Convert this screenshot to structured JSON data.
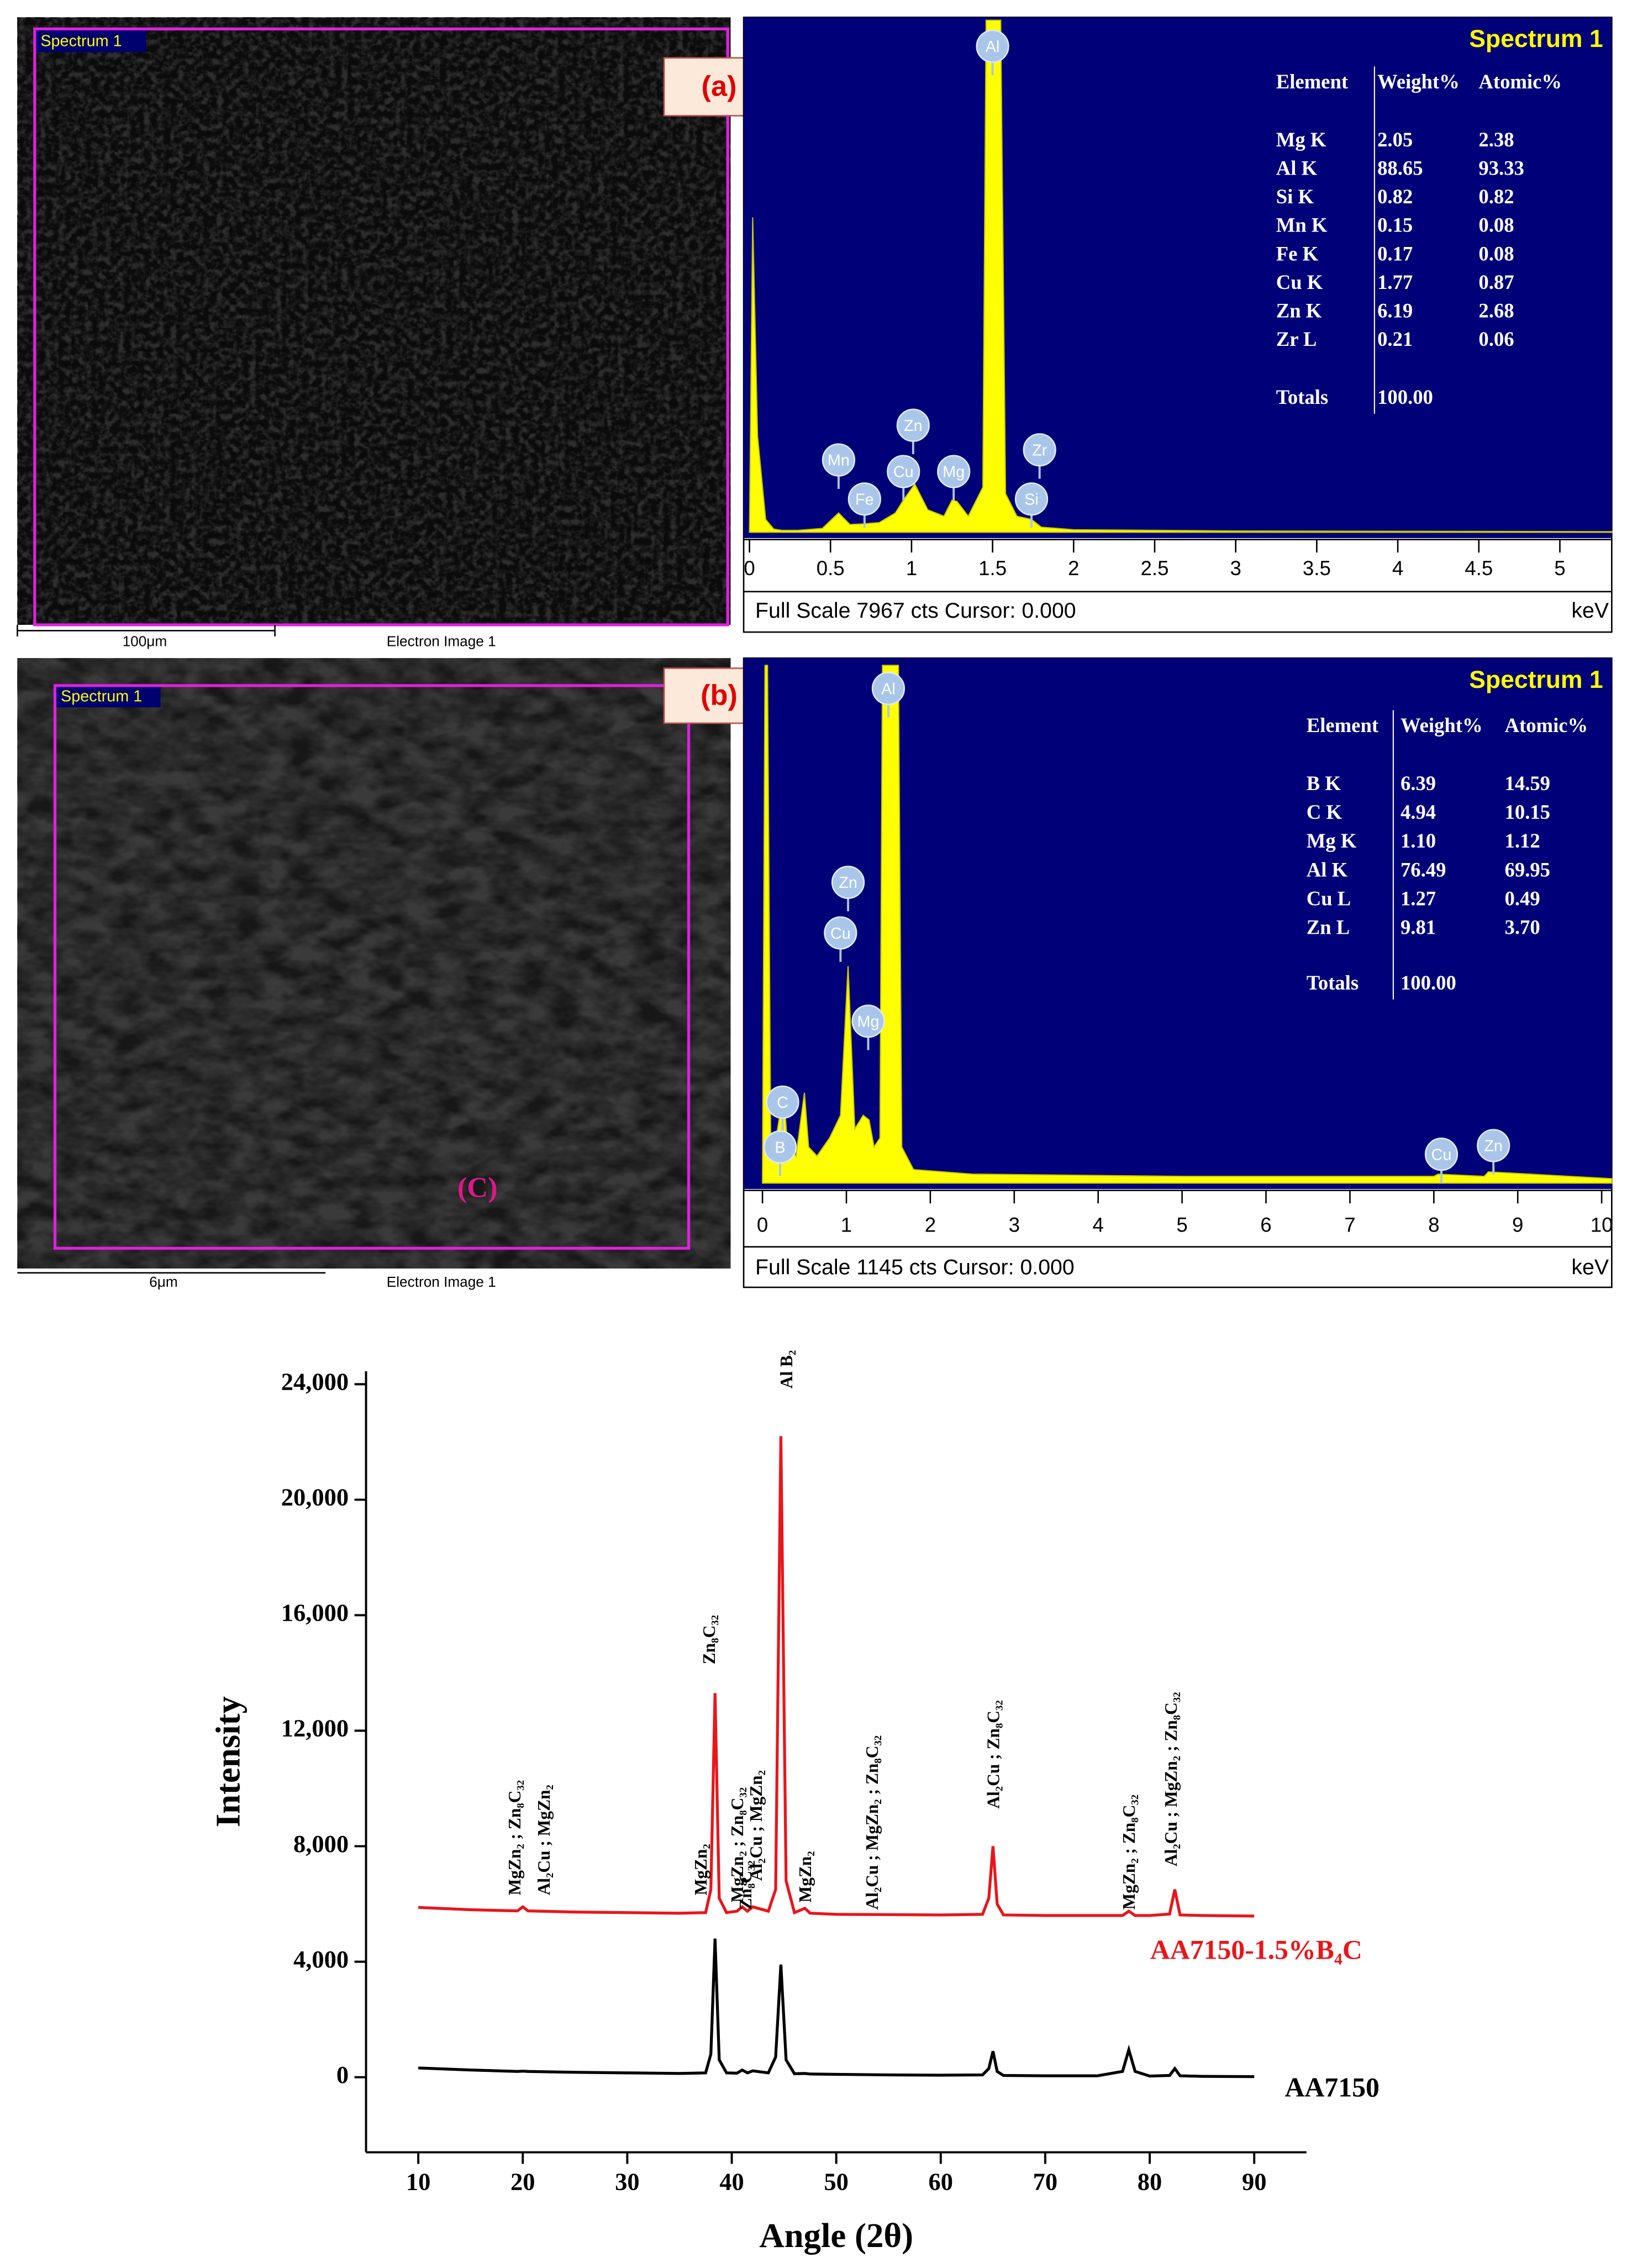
{
  "images": [
    {
      "panel": "(a)",
      "region_label": "Spectrum 1",
      "scale_bar": "100μm",
      "caption": "Electron Image 1"
    },
    {
      "panel": "(b)",
      "region_label": "Spectrum 1",
      "scale_bar": "6μm",
      "caption": "Electron Image 1"
    }
  ],
  "chart_data": [
    {
      "type": "area",
      "title": "Spectrum 1",
      "footer": "Full Scale 7967 cts Cursor: 0.000",
      "x_label": "keV",
      "color": "#ffff00",
      "background": "#000078",
      "xlim": [
        0,
        5.32
      ],
      "xticks": [
        0,
        0.5,
        1,
        1.5,
        2,
        2.5,
        3,
        3.5,
        4,
        4.5,
        5
      ],
      "ylim": [
        0,
        7967
      ],
      "x": [
        0,
        0.02,
        0.05,
        0.1,
        0.15,
        0.2,
        0.3,
        0.45,
        0.55,
        0.62,
        0.7,
        0.8,
        0.9,
        0.95,
        1.02,
        1.1,
        1.2,
        1.25,
        1.28,
        1.35,
        1.44,
        1.46,
        1.55,
        1.58,
        1.65,
        1.74,
        1.8,
        2.0,
        3.0,
        5.32
      ],
      "values": [
        0,
        4900,
        1500,
        200,
        50,
        30,
        30,
        60,
        300,
        120,
        130,
        150,
        300,
        500,
        750,
        350,
        250,
        500,
        480,
        250,
        700,
        7967,
        7967,
        600,
        250,
        200,
        80,
        40,
        20,
        10
      ],
      "peak_labels": [
        {
          "text": "Al",
          "x": 1.5
        },
        {
          "text": "Mn",
          "x": 0.55
        },
        {
          "text": "Fe",
          "x": 0.71
        },
        {
          "text": "Cu",
          "x": 0.95
        },
        {
          "text": "Zn",
          "x": 1.01
        },
        {
          "text": "Mg",
          "x": 1.26
        },
        {
          "text": "Zr",
          "x": 1.79
        },
        {
          "text": "Si",
          "x": 1.74
        }
      ],
      "table": {
        "columns": [
          "Element",
          "Weight%",
          "Atomic%"
        ],
        "rows": [
          [
            "Mg K",
            "2.05",
            "2.38"
          ],
          [
            "Al K",
            "88.65",
            "93.33"
          ],
          [
            "Si K",
            "0.82",
            "0.82"
          ],
          [
            "Mn K",
            "0.15",
            "0.08"
          ],
          [
            "Fe K",
            "0.17",
            "0.08"
          ],
          [
            "Cu K",
            "1.77",
            "0.87"
          ],
          [
            "Zn K",
            "6.19",
            "2.68"
          ],
          [
            "Zr L",
            "0.21",
            "0.06"
          ]
        ],
        "totals": [
          "Totals",
          "100.00"
        ]
      }
    },
    {
      "type": "area",
      "title": "Spectrum 1",
      "footer": "Full Scale 1145 cts Cursor: 0.000",
      "x_label": "keV",
      "color": "#ffff00",
      "background": "#000078",
      "xlim": [
        0,
        10.12
      ],
      "xticks": [
        0,
        1,
        2,
        3,
        4,
        5,
        6,
        7,
        8,
        9,
        10
      ],
      "ylim": [
        0,
        1145
      ],
      "x": [
        0,
        0.03,
        0.06,
        0.1,
        0.18,
        0.25,
        0.3,
        0.4,
        0.5,
        0.55,
        0.65,
        0.8,
        0.93,
        1.02,
        1.1,
        1.2,
        1.27,
        1.33,
        1.4,
        1.43,
        1.62,
        1.66,
        1.8,
        2.5,
        5,
        8.0,
        8.05,
        8.6,
        8.65,
        10.12
      ],
      "values": [
        0,
        1145,
        1145,
        50,
        120,
        200,
        80,
        60,
        200,
        80,
        60,
        100,
        150,
        480,
        120,
        150,
        140,
        80,
        100,
        1145,
        1145,
        80,
        30,
        20,
        15,
        15,
        20,
        15,
        25,
        10
      ],
      "peak_labels": [
        {
          "text": "Al",
          "x": 1.5
        },
        {
          "text": "Zn",
          "x": 1.02
        },
        {
          "text": "Cu",
          "x": 0.93
        },
        {
          "text": "Mg",
          "x": 1.26
        },
        {
          "text": "C",
          "x": 0.24
        },
        {
          "text": "B",
          "x": 0.21
        },
        {
          "text": "Cu",
          "x": 8.09
        },
        {
          "text": "Zn",
          "x": 8.71
        }
      ],
      "table": {
        "columns": [
          "Element",
          "Weight%",
          "Atomic%"
        ],
        "rows": [
          [
            "B K",
            "6.39",
            "14.59"
          ],
          [
            "C K",
            "4.94",
            "10.15"
          ],
          [
            "Mg K",
            "1.10",
            "1.12"
          ],
          [
            "Al K",
            "76.49",
            "69.95"
          ],
          [
            "Cu L",
            "1.27",
            "0.49"
          ],
          [
            "Zn L",
            "9.81",
            "3.70"
          ]
        ],
        "totals": [
          "Totals",
          "100.00"
        ]
      }
    },
    {
      "type": "line",
      "panel": "(C)",
      "x_label": "Angle (2θ)",
      "y_label": "Intensity",
      "xlim": [
        5,
        95
      ],
      "xticks": [
        10,
        20,
        30,
        40,
        50,
        60,
        70,
        80,
        90
      ],
      "ylim": [
        -2600,
        24450
      ],
      "yticks": [
        0,
        {
          "value": 4000,
          "label": "4,000"
        },
        {
          "value": 8000,
          "label": "8,000"
        },
        {
          "value": 12000,
          "label": "12,000"
        },
        {
          "value": 16000,
          "label": "16,000"
        },
        {
          "value": 20000,
          "label": "20,000"
        },
        {
          "value": 24000,
          "label": "24,000"
        }
      ],
      "x": [
        10,
        15,
        19.5,
        20,
        20.5,
        25,
        30,
        35,
        37.5,
        38,
        38.4,
        38.8,
        39.5,
        40.5,
        41,
        41.5,
        42,
        43.5,
        44.2,
        44.7,
        45.2,
        46,
        47,
        47.5,
        50,
        55,
        60,
        64,
        64.6,
        65,
        65.4,
        66,
        70,
        75,
        77.4,
        78,
        78.6,
        80,
        81.9,
        82.4,
        82.9,
        85,
        90
      ],
      "series": [
        {
          "name": "AA7150-1.5%B₄C",
          "color": "#e8161b",
          "values": [
            5880,
            5800,
            5760,
            5900,
            5760,
            5720,
            5700,
            5680,
            5700,
            6500,
            13300,
            6200,
            5700,
            5750,
            5900,
            5750,
            5900,
            5750,
            6500,
            22200,
            6800,
            5700,
            5850,
            5680,
            5640,
            5630,
            5620,
            5640,
            6200,
            8000,
            6000,
            5620,
            5600,
            5600,
            5600,
            5750,
            5600,
            5600,
            5650,
            6500,
            5620,
            5600,
            5580
          ]
        },
        {
          "name": "AA7150",
          "color": "#000000",
          "values": [
            320,
            250,
            200,
            210,
            200,
            170,
            150,
            130,
            150,
            800,
            4800,
            600,
            150,
            140,
            250,
            150,
            220,
            150,
            700,
            3900,
            600,
            120,
            130,
            110,
            100,
            80,
            70,
            80,
            300,
            900,
            200,
            60,
            50,
            50,
            200,
            950,
            200,
            40,
            60,
            300,
            50,
            30,
            20
          ]
        }
      ],
      "annotations": [
        {
          "text": "MgZn₂ ; Zn₈C₃₂",
          "x": 19.4,
          "y": 6300
        },
        {
          "text": "Al₂Cu ; MgZn₂",
          "x": 22.2,
          "y": 6300
        },
        {
          "text": "MgZn₂",
          "x": 37.2,
          "y": 6300
        },
        {
          "text": "Zn₈C₃₂",
          "x": 38.0,
          "y": 14300
        },
        {
          "text": "MgZn₂ ; Zn₈C₃₂",
          "x": 40.7,
          "y": 6050
        },
        {
          "text": "Zn₈C₃₂",
          "x": 41.5,
          "y": 5800
        },
        {
          "text": "Al₂Cu ; MgZn₂",
          "x": 42.5,
          "y": 6800
        },
        {
          "text": "Al B₂",
          "x": 45.4,
          "y": 23850
        },
        {
          "text": "MgZn₂",
          "x": 47.2,
          "y": 6050
        },
        {
          "text": "Al₂Cu ;  MgZn₂ ; Zn₈C₃₂",
          "x": 53.6,
          "y": 5800
        },
        {
          "text": "Al₂Cu ;  Zn₈C₃₂",
          "x": 65.2,
          "y": 9300
        },
        {
          "text": "MgZn₂ ; Zn₈C₃₂",
          "x": 78.2,
          "y": 5800
        },
        {
          "text": "Al₂Cu ;  MgZn₂ ; Zn₈C₃₂",
          "x": 82.2,
          "y": 7300
        }
      ]
    }
  ]
}
